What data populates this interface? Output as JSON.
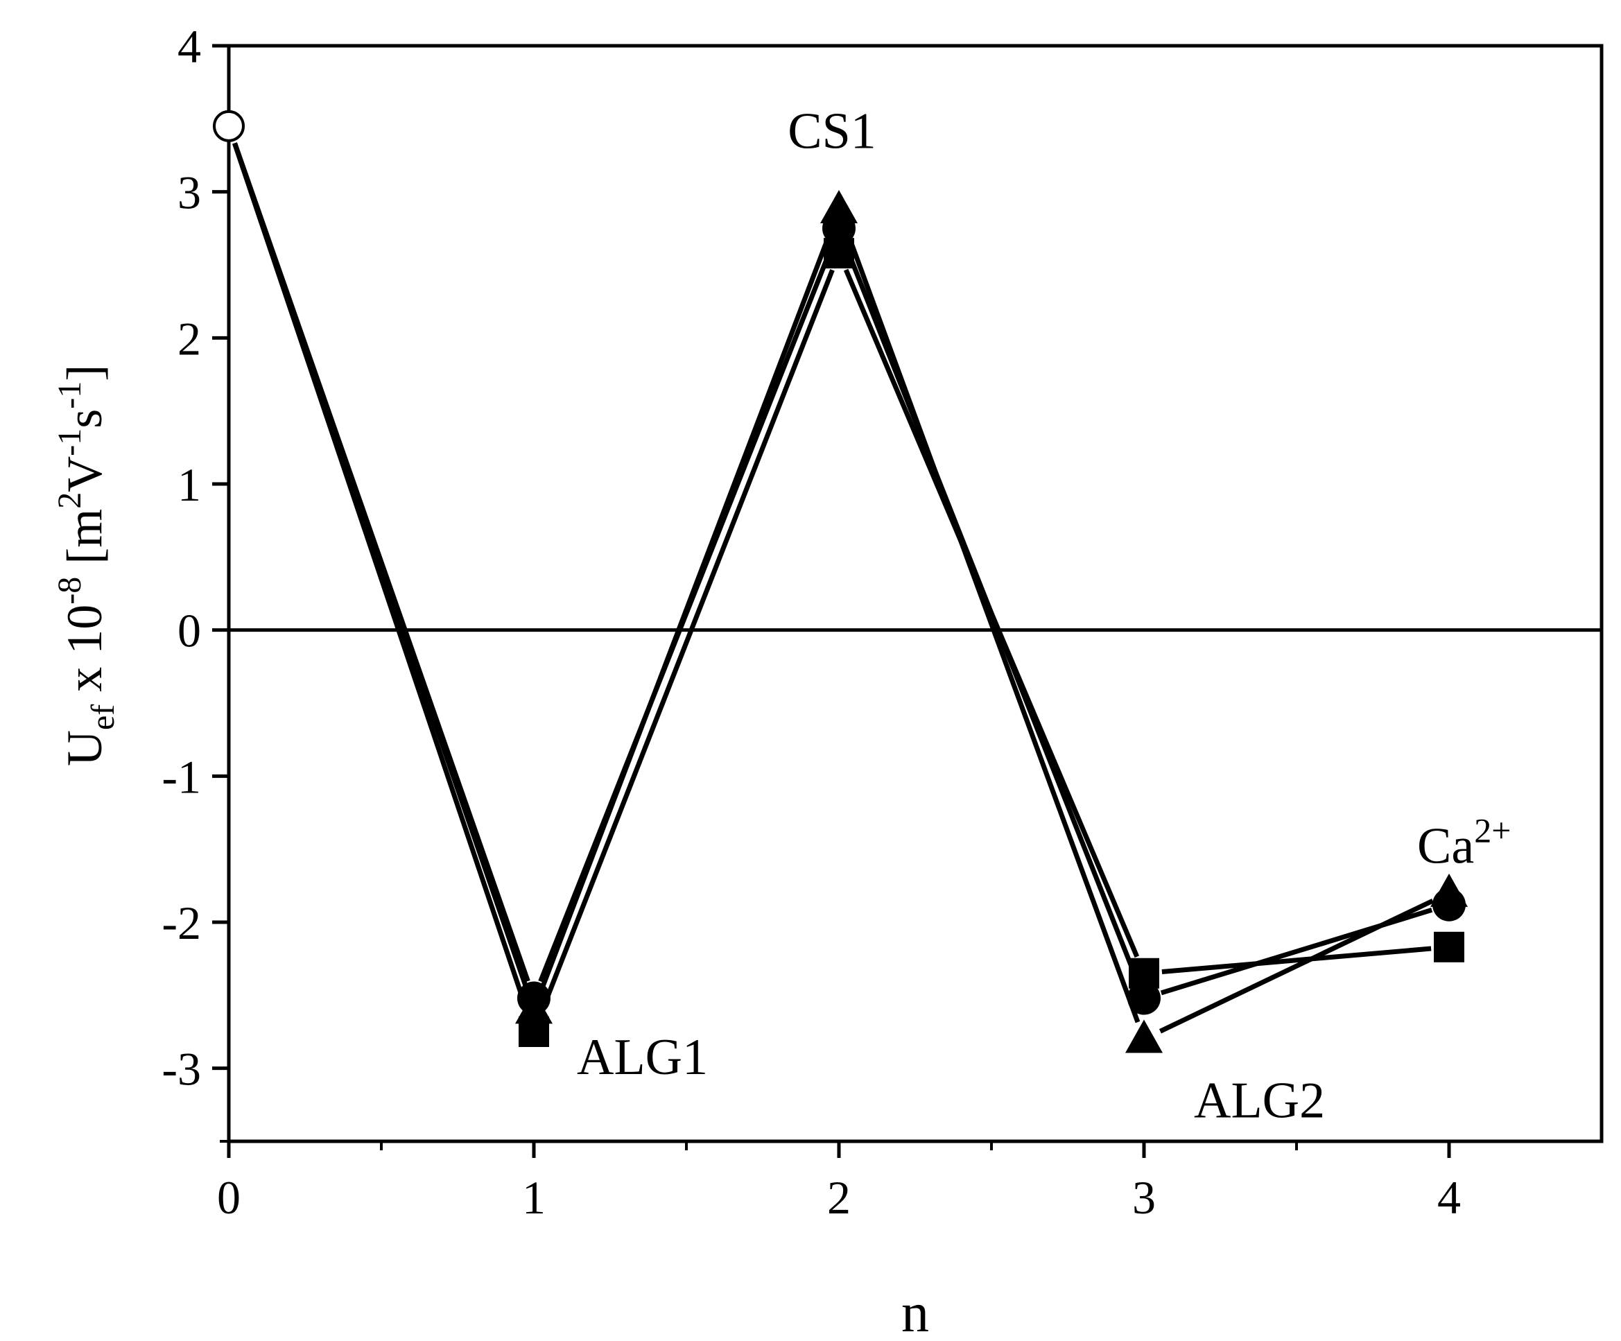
{
  "chart_data": {
    "type": "line",
    "xlabel": "n",
    "ylabel": {
      "U": "U",
      "U_sub": "ef",
      "x": " x 10",
      "x_sup": "-8",
      "open_m": " [m",
      "m_sup": "2",
      "V": "V",
      "V_sup": "-1",
      "s": "s",
      "s_sup": "-1",
      "close": "]"
    },
    "xlim": [
      0,
      4.5
    ],
    "ylim": [
      -3.5,
      4
    ],
    "xticks": [
      0,
      1,
      2,
      3,
      4
    ],
    "xtick_labels": [
      "0",
      "1",
      "2",
      "3",
      "4"
    ],
    "yticks": [
      -3,
      -2,
      -1,
      0,
      1,
      2,
      3,
      4
    ],
    "ytick_labels": [
      "-3",
      "-2",
      "-1",
      "0",
      "1",
      "2",
      "3",
      "4"
    ],
    "reference_line_y": 0,
    "grid": false,
    "initial_point": {
      "x": 0,
      "y": 3.45,
      "marker": "open-circle"
    },
    "series": [
      {
        "marker": "square",
        "x": [
          0,
          1,
          2,
          3,
          4
        ],
        "y": [
          3.45,
          -2.75,
          2.58,
          -2.35,
          -2.17
        ]
      },
      {
        "marker": "circle",
        "x": [
          0,
          1,
          2,
          3,
          4
        ],
        "y": [
          3.45,
          -2.52,
          2.75,
          -2.52,
          -1.88
        ]
      },
      {
        "marker": "triangle",
        "x": [
          0,
          1,
          2,
          3,
          4
        ],
        "y": [
          3.45,
          -2.6,
          2.88,
          -2.8,
          -1.8
        ]
      }
    ],
    "annotations": [
      {
        "text": "ALG1",
        "x": 1,
        "y": -2.85
      },
      {
        "text": "CS1",
        "x": 2,
        "y": 3.3
      },
      {
        "text": "ALG2",
        "x": 3,
        "y": -3.1
      },
      {
        "text": "Ca",
        "sup": "2+",
        "x": 4,
        "y": -1.5
      }
    ]
  }
}
